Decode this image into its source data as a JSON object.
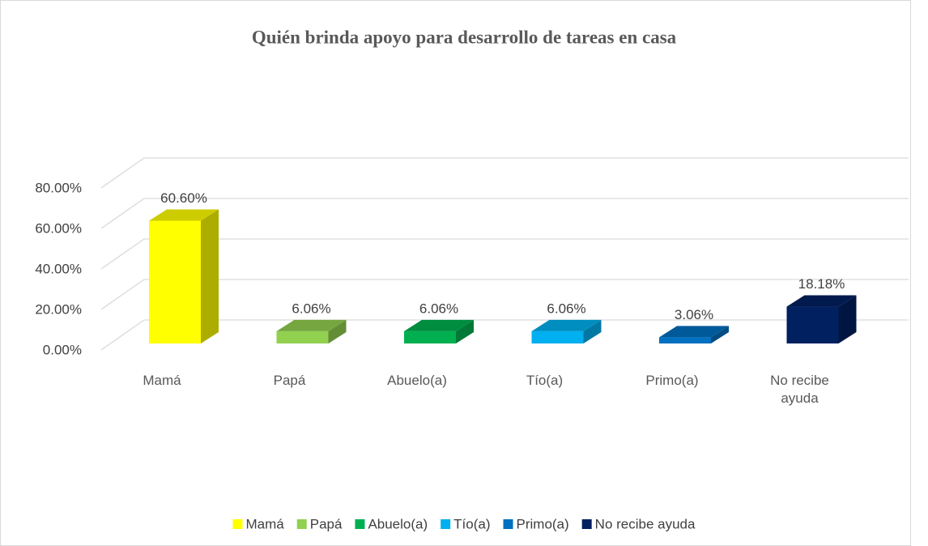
{
  "chart_data": {
    "type": "bar",
    "title": "Quién brinda apoyo para desarrollo de tareas en casa",
    "categories": [
      "Mamá",
      "Papá",
      "Abuelo(a)",
      "Tío(a)",
      "Primo(a)",
      "No recibe ayuda"
    ],
    "values": [
      60.6,
      6.06,
      6.06,
      6.06,
      3.06,
      18.18
    ],
    "value_labels": [
      "60.60%",
      "6.06%",
      "6.06%",
      "6.06%",
      "3.06%",
      "18.18%"
    ],
    "colors": [
      "#ffff00",
      "#92d050",
      "#00b050",
      "#00b0f0",
      "#0070c0",
      "#002060"
    ],
    "ylim": [
      0,
      80
    ],
    "yticks": [
      {
        "value": 0,
        "label": "0.00%"
      },
      {
        "value": 20,
        "label": "20.00%"
      },
      {
        "value": 40,
        "label": "40.00%"
      },
      {
        "value": 60,
        "label": "60.00%"
      },
      {
        "value": 80,
        "label": "80.00%"
      }
    ],
    "grid": true,
    "legend": "bottom"
  }
}
